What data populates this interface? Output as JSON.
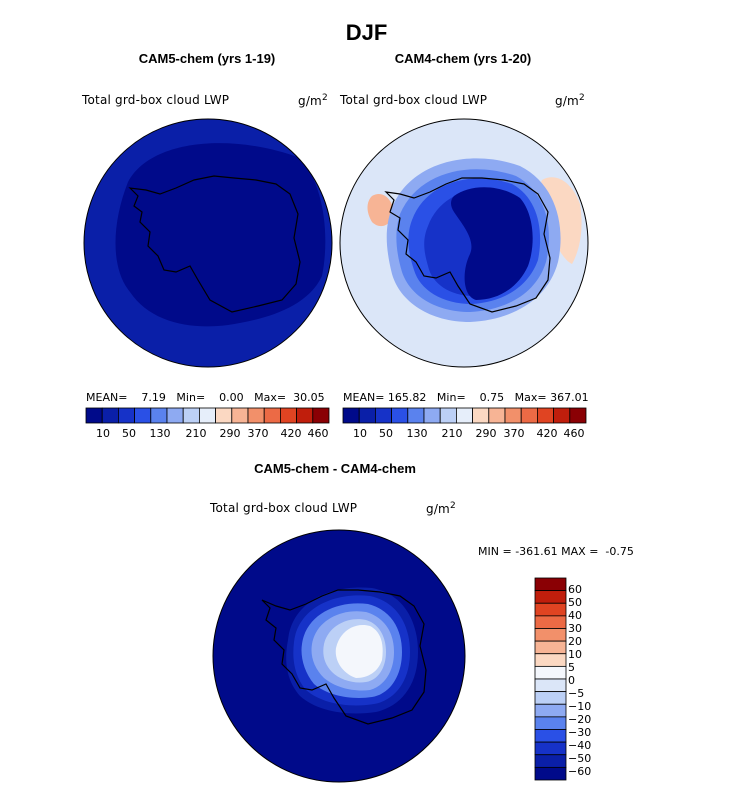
{
  "figure_title": "DJF",
  "chart_data": [
    {
      "type": "heatmap",
      "projection": "south-polar stereographic",
      "title": "CAM5-chem (yrs 1-19)",
      "variable": "Total grd-box cloud LWP",
      "units_base": "g/m",
      "units_exp": "2",
      "mean_label": "MEAN=",
      "mean": "7.19",
      "min_label": "Min=",
      "min": "0.00",
      "max_label": "Max=",
      "max": "30.05",
      "colorbar_labels": [
        "10",
        "50",
        "130",
        "210",
        "290",
        "370",
        "420",
        "460"
      ],
      "field_values": {
        "ocean": 10,
        "antarctica": 5
      }
    },
    {
      "type": "heatmap",
      "projection": "south-polar stereographic",
      "title": "CAM4-chem (yrs 1-20)",
      "variable": "Total grd-box cloud LWP",
      "units_base": "g/m",
      "units_exp": "2",
      "mean_label": "MEAN=",
      "mean": "165.82",
      "min_label": "Min=",
      "min": "0.75",
      "max_label": "Max=",
      "max": "367.01",
      "colorbar_labels": [
        "10",
        "50",
        "130",
        "210",
        "290",
        "370",
        "420",
        "460"
      ],
      "field_values": {
        "background": 210,
        "ring_outer": 130,
        "ring_mid": 50,
        "ring_inner": 10,
        "interior": 5,
        "local_max": 290
      }
    },
    {
      "type": "heatmap",
      "projection": "south-polar stereographic",
      "title": "CAM5-chem - CAM4-chem",
      "variable": "Total grd-box cloud LWP",
      "units_base": "g/m",
      "units_exp": "2",
      "min_label": "MIN =",
      "min": "-361.61",
      "max_label": "MAX =",
      "max": "-0.75",
      "colorbar_labels": [
        "60",
        "50",
        "40",
        "30",
        "20",
        "10",
        "5",
        "0",
        "−5",
        "−10",
        "−20",
        "−30",
        "−40",
        "−50",
        "−60"
      ],
      "field_values": {
        "background": -70,
        "ring_1": -60,
        "ring_2": -50,
        "ring_3": -40,
        "ring_4": -30,
        "ring_5": -20,
        "interior": -5
      }
    }
  ],
  "colors": {
    "seq": [
      "#000a8a",
      "#0a1fa8",
      "#1632c8",
      "#2a50e6",
      "#5a82ee",
      "#8eaaf2",
      "#bcd0f6",
      "#e6eefa",
      "#fbd8c2",
      "#f7b495",
      "#f2906a",
      "#ec6a45",
      "#e04422",
      "#c01e0c",
      "#8a0004"
    ],
    "diff": [
      "#8a0004",
      "#c01e0c",
      "#e04422",
      "#ec6a45",
      "#f2906a",
      "#f7b495",
      "#fbd8c2",
      "#f4f7fc",
      "#dbe6f8",
      "#bcd0f6",
      "#8eaaf2",
      "#5a82ee",
      "#2a50e6",
      "#1632c8",
      "#0a1fa8",
      "#000a8a"
    ]
  }
}
